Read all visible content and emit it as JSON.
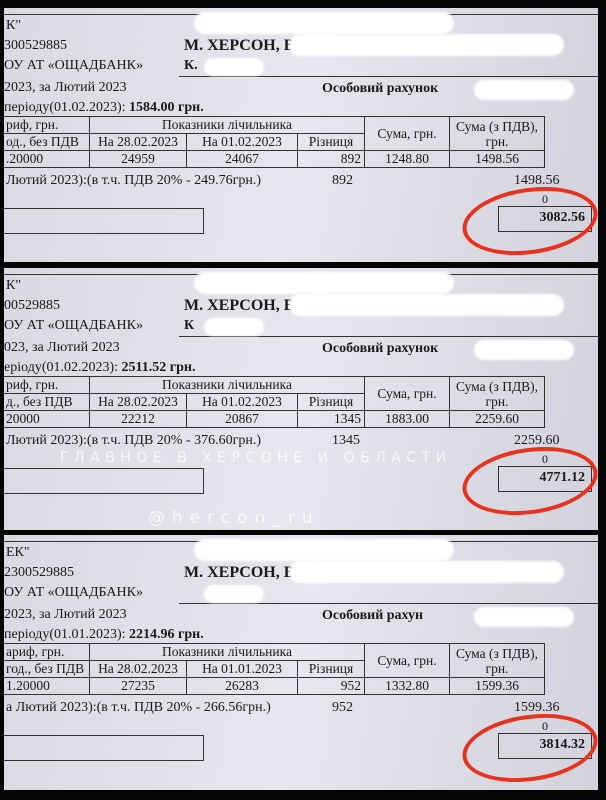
{
  "watermark": {
    "headline": "ГЛАВНОЕ В ХЕРСОНЕ И ОБЛАСТИ",
    "handle": "@hercon_ru"
  },
  "annotation_color": "#e8321e",
  "bills": [
    {
      "line1": "К\"",
      "code": "300529885",
      "bank": "ОУ АТ «ОЩАДБАНК»",
      "address": "М. ХЕРСОН, ВУЛ.",
      "address2": "К.",
      "period": "2023, за Лютий 2023",
      "account_label": "Особовий рахунок",
      "debt_label": "періоду(01.02.2023):",
      "debt_value": "1584.00 грн.",
      "headers": {
        "tariff1": "риф, грн.",
        "tariff2": "од., без ПДВ",
        "meter": "Показники лічильника",
        "date1": "На 28.02.2023",
        "date2": "На 01.02.2023",
        "diff": "Різниця",
        "sum": "Сума, грн.",
        "sum_vat": "Сума (з ПДВ), грн."
      },
      "row": {
        "tariff": ".20000",
        "reading1": "24959",
        "reading2": "24067",
        "diff": "892",
        "sum": "1248.80",
        "sum_vat": "1498.56"
      },
      "summary": {
        "label": "Лютий 2023):(в т.ч. ПДВ 20% - 249.76грн.)",
        "diff": "892",
        "sum_vat": "1498.56"
      },
      "zero": "0",
      "total": "3082.56"
    },
    {
      "line1": "К\"",
      "code": "00529885",
      "bank": "ОУ АТ «ОЩАДБАНК»",
      "address": "М. ХЕРСОН, ВУЛ.",
      "address2": "К",
      "period": "023, за Лютий 2023",
      "account_label": "Особовий рахунок",
      "debt_label": "еріоду(01.02.2023):",
      "debt_value": "2511.52 грн.",
      "headers": {
        "tariff1": "риф, грн.",
        "tariff2": "д., без ПДВ",
        "meter": "Показники лічильника",
        "date1": "На 28.02.2023",
        "date2": "На 01.02.2023",
        "diff": "Різниця",
        "sum": "Сума, грн.",
        "sum_vat": "Сума (з ПДВ), грн."
      },
      "row": {
        "tariff": "20000",
        "reading1": "22212",
        "reading2": "20867",
        "diff": "1345",
        "sum": "1883.00",
        "sum_vat": "2259.60"
      },
      "summary": {
        "label": "Лютий 2023):(в т.ч. ПДВ 20% - 376.60грн.)",
        "diff": "1345",
        "sum_vat": "2259.60"
      },
      "zero": "0",
      "total": "4771.12"
    },
    {
      "line1": "ЕК\"",
      "code": "2300529885",
      "bank": "ОУ АТ «ОЩАДБАНК»",
      "address": "М. ХЕРСОН, ВУЛ. М",
      "address2": "",
      "period": "2023, за Лютий 2023",
      "account_label": "Особовий рахун",
      "debt_label": "періоду(01.01.2023):",
      "debt_value": "2214.96 грн.",
      "headers": {
        "tariff1": "ариф, грн.",
        "tariff2": "год., без ПДВ",
        "meter": "Показники лічильника",
        "date1": "На 28.02.2023",
        "date2": "На 01.01.2023",
        "diff": "Різниця",
        "sum": "Сума, грн.",
        "sum_vat": "Сума (з ПДВ), грн."
      },
      "row": {
        "tariff": "1.20000",
        "reading1": "27235",
        "reading2": "26283",
        "diff": "952",
        "sum": "1332.80",
        "sum_vat": "1599.36"
      },
      "summary": {
        "label": "а Лютий 2023):(в т.ч. ПДВ 20% - 266.56грн.)",
        "diff": "952",
        "sum_vat": "1599.36"
      },
      "zero": "0",
      "total": "3814.32"
    }
  ]
}
